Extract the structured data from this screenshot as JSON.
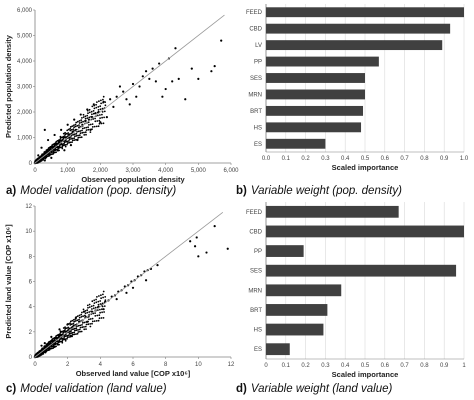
{
  "colors": {
    "bar": "#404040",
    "point": "#000000",
    "fitline": "#999999",
    "grid": "#d9d9d9",
    "axis": "#808080"
  },
  "charts": [
    {
      "caption": {
        "letter": "a)",
        "text": "Model validation (pop. density)"
      },
      "chart_data": {
        "type": "scatter",
        "xlabel": "Observed population density",
        "ylabel": "Predicted population density",
        "xlim": [
          0,
          6000
        ],
        "ylim": [
          0,
          6000
        ],
        "xticks": [
          "0",
          "1,000",
          "2,000",
          "3,000",
          "4,000",
          "5,000",
          "6,000"
        ],
        "yticks": [
          "0",
          "1,000",
          "2,000",
          "3,000",
          "4,000",
          "5,000",
          "6,000"
        ],
        "trendline": [
          [
            0,
            0
          ],
          [
            5800,
            5800
          ]
        ],
        "points": [
          [
            60,
            80
          ],
          [
            150,
            200
          ],
          [
            250,
            280
          ],
          [
            350,
            400
          ],
          [
            450,
            500
          ],
          [
            550,
            600
          ],
          [
            650,
            700
          ],
          [
            750,
            820
          ],
          [
            850,
            900
          ],
          [
            950,
            1000
          ],
          [
            1050,
            1100
          ],
          [
            1150,
            1220
          ],
          [
            1250,
            1300
          ],
          [
            1350,
            1400
          ],
          [
            1450,
            1500
          ],
          [
            1550,
            1650
          ],
          [
            1650,
            1700
          ],
          [
            1750,
            1800
          ],
          [
            1850,
            1950
          ],
          [
            1950,
            2000
          ],
          [
            200,
            600
          ],
          [
            400,
            900
          ],
          [
            600,
            1100
          ],
          [
            300,
            1300
          ],
          [
            800,
            1300
          ],
          [
            1000,
            1500
          ],
          [
            1200,
            1700
          ],
          [
            1400,
            1900
          ],
          [
            1600,
            2100
          ],
          [
            1800,
            2300
          ],
          [
            500,
            200
          ],
          [
            900,
            500
          ],
          [
            1300,
            900
          ],
          [
            1700,
            1300
          ],
          [
            2000,
            1600
          ],
          [
            2200,
            1800
          ],
          [
            2100,
            2400
          ],
          [
            2300,
            2500
          ],
          [
            2400,
            2200
          ],
          [
            2500,
            2600
          ],
          [
            2700,
            2800
          ],
          [
            2800,
            2500
          ],
          [
            3000,
            3100
          ],
          [
            3200,
            3000
          ],
          [
            3300,
            3400
          ],
          [
            3500,
            3300
          ],
          [
            3600,
            3700
          ],
          [
            3400,
            3600
          ],
          [
            3800,
            3900
          ],
          [
            4000,
            2900
          ],
          [
            4200,
            3200
          ],
          [
            3900,
            2600
          ],
          [
            4400,
            3300
          ],
          [
            4600,
            2500
          ],
          [
            4100,
            4100
          ],
          [
            4300,
            4500
          ],
          [
            5400,
            3600
          ],
          [
            5500,
            3800
          ],
          [
            5000,
            3300
          ],
          [
            5700,
            4800
          ],
          [
            2600,
            3000
          ],
          [
            2900,
            2300
          ],
          [
            3100,
            2600
          ],
          [
            3700,
            3200
          ],
          [
            4800,
            3700
          ],
          [
            100,
            300
          ],
          [
            50,
            100
          ],
          [
            1100,
            700
          ],
          [
            700,
            500
          ],
          [
            300,
            100
          ]
        ]
      }
    },
    {
      "caption": {
        "letter": "b)",
        "text": "Variable weight (pop. density)"
      },
      "chart_data": {
        "type": "bar",
        "orientation": "horizontal",
        "categories": [
          "FEED",
          "CBD",
          "LV",
          "PP",
          "SES",
          "MRN",
          "BRT",
          "HS",
          "ES"
        ],
        "values": [
          1.0,
          0.93,
          0.89,
          0.57,
          0.5,
          0.5,
          0.49,
          0.48,
          0.3
        ],
        "xlabel": "Scaled importance",
        "xlim": [
          0,
          1.0
        ],
        "xticks": [
          "0.0",
          "0.1",
          "0.2",
          "0.3",
          "0.4",
          "0.5",
          "0.6",
          "0.7",
          "0.8",
          "0.9",
          "1.0"
        ],
        "grid": true
      }
    },
    {
      "caption": {
        "letter": "c)",
        "text": "Model validation (land value)"
      },
      "chart_data": {
        "type": "scatter",
        "xlabel": "Observed land value [COP x10⁶]",
        "ylabel": "Predicted land value [COP x10⁶]",
        "xlim": [
          0,
          12
        ],
        "ylim": [
          0,
          12
        ],
        "xticks": [
          "0",
          "2",
          "4",
          "6",
          "8",
          "10",
          "12"
        ],
        "yticks": [
          "0",
          "2",
          "4",
          "6",
          "8",
          "10",
          "12"
        ],
        "trendline": [
          [
            0,
            0
          ],
          [
            11.5,
            11.5
          ]
        ],
        "points": [
          [
            0.1,
            0.2
          ],
          [
            0.2,
            0.1
          ],
          [
            0.3,
            0.4
          ],
          [
            0.5,
            0.5
          ],
          [
            0.7,
            0.8
          ],
          [
            0.9,
            0.9
          ],
          [
            1.1,
            1.2
          ],
          [
            1.3,
            1.3
          ],
          [
            1.5,
            1.6
          ],
          [
            1.7,
            1.7
          ],
          [
            1.9,
            2.0
          ],
          [
            2.1,
            2.1
          ],
          [
            2.3,
            2.4
          ],
          [
            2.5,
            2.5
          ],
          [
            2.7,
            2.8
          ],
          [
            2.9,
            2.9
          ],
          [
            3.1,
            3.2
          ],
          [
            3.3,
            3.3
          ],
          [
            3.5,
            3.6
          ],
          [
            3.7,
            3.7
          ],
          [
            3.9,
            4.0
          ],
          [
            4.1,
            4.1
          ],
          [
            4.3,
            4.4
          ],
          [
            4.5,
            4.5
          ],
          [
            4.7,
            4.8
          ],
          [
            4.9,
            4.9
          ],
          [
            5.1,
            5.2
          ],
          [
            5.3,
            5.3
          ],
          [
            5.5,
            5.6
          ],
          [
            5.7,
            5.7
          ],
          [
            5.9,
            6.0
          ],
          [
            6.1,
            6.1
          ],
          [
            6.3,
            6.4
          ],
          [
            6.5,
            6.5
          ],
          [
            6.7,
            6.8
          ],
          [
            6.9,
            6.9
          ],
          [
            7.1,
            7.0
          ],
          [
            1.0,
            1.6
          ],
          [
            1.5,
            2.2
          ],
          [
            2.0,
            2.6
          ],
          [
            2.5,
            3.1
          ],
          [
            3.0,
            3.6
          ],
          [
            2.2,
            1.7
          ],
          [
            3.2,
            2.8
          ],
          [
            4.2,
            3.8
          ],
          [
            5.0,
            4.6
          ],
          [
            6.0,
            5.5
          ],
          [
            0.6,
            1.1
          ],
          [
            0.4,
            0.9
          ],
          [
            1.2,
            0.8
          ],
          [
            7.5,
            7.3
          ],
          [
            9.5,
            9.2
          ],
          [
            9.8,
            8.8
          ],
          [
            10.0,
            8.0
          ],
          [
            10.5,
            8.3
          ],
          [
            9.9,
            9.5
          ],
          [
            11.8,
            8.6
          ],
          [
            11.0,
            10.4
          ],
          [
            6.8,
            6.1
          ],
          [
            5.6,
            5.1
          ]
        ]
      }
    },
    {
      "caption": {
        "letter": "d)",
        "text": "Variable weight (land value)"
      },
      "chart_data": {
        "type": "bar",
        "orientation": "horizontal",
        "categories": [
          "FEED",
          "CBD",
          "PP",
          "SES",
          "MRN",
          "BRT",
          "HS",
          "ES"
        ],
        "values": [
          0.67,
          1.0,
          0.19,
          0.96,
          0.38,
          0.31,
          0.29,
          0.12
        ],
        "xlabel": "Scaled importance",
        "xlim": [
          0,
          1.0
        ],
        "xticks": [
          "0",
          "0.1",
          "0.2",
          "0.3",
          "0.4",
          "0.5",
          "0.6",
          "0.7",
          "0.8",
          "0.9",
          "1"
        ],
        "grid": true
      }
    }
  ]
}
